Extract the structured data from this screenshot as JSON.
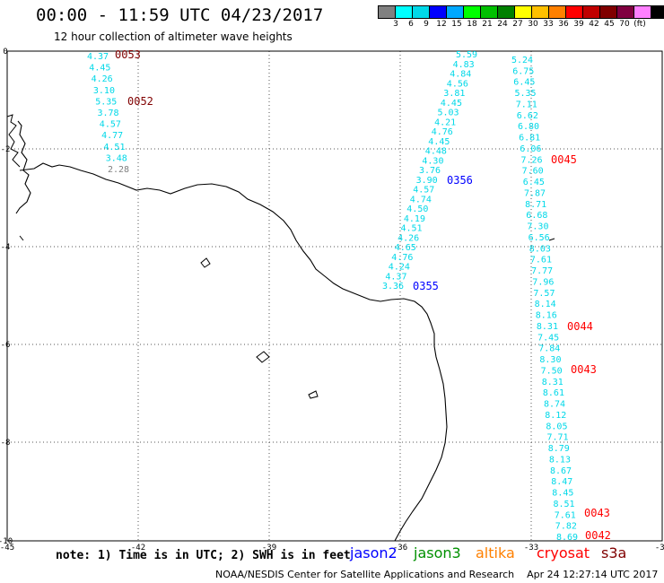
{
  "header": {
    "title": "00:00 - 11:59 UTC 04/23/2017",
    "subtitle": "12 hour collection of altimeter wave heights"
  },
  "colorbar": {
    "unit": "(ft)",
    "labels": [
      "3",
      "6",
      "9",
      "12",
      "15",
      "18",
      "21",
      "24",
      "27",
      "30",
      "33",
      "36",
      "39",
      "42",
      "45",
      "70"
    ],
    "colors": [
      "#808080",
      "#00ffff",
      "#00d8e8",
      "#0000ff",
      "#00a8ff",
      "#00ff00",
      "#00c000",
      "#008000",
      "#ffff00",
      "#ffc000",
      "#ff8000",
      "#ff0000",
      "#c00000",
      "#800000",
      "#800040",
      "#ff80ff",
      "#000000"
    ]
  },
  "axes": {
    "x_ticks": [
      "-45",
      "-42",
      "-39",
      "-36",
      "-33",
      "-30"
    ],
    "y_ticks": [
      "0",
      "-2",
      "-4",
      "-6",
      "-8",
      "-10"
    ]
  },
  "tracks": {
    "track_a": {
      "values": [
        "4.37",
        "4.45",
        "4.26",
        "3.10",
        "5.35",
        "3.78",
        "4.57",
        "4.77",
        "4.51",
        "3.48",
        "2.28"
      ],
      "times": [
        "0053",
        "0052"
      ]
    },
    "track_b": {
      "values": [
        "5.59",
        "4.83",
        "4.84",
        "4.56",
        "3.81",
        "4.45",
        "5.03",
        "4.21",
        "4.76",
        "4.45",
        "4.48",
        "4.30",
        "3.76",
        "3.90",
        "4.57",
        "4.74",
        "4.50",
        "4.19",
        "4.51",
        "4.26",
        "4.65",
        "4.76",
        "4.24",
        "4.37",
        "3.36"
      ],
      "times": [
        "0356",
        "0355"
      ]
    },
    "track_c": {
      "values": [
        "5.24",
        "6.75",
        "6.45",
        "5.35",
        "7.11",
        "6.62",
        "6.80",
        "6.81",
        "6.06",
        "7.26",
        "7.60",
        "6.45",
        "7.87",
        "8.71",
        "6.68",
        "7.30",
        "6.56",
        "8.03",
        "7.61",
        "7.77",
        "7.96",
        "7.57",
        "8.14",
        "8.16",
        "8.31",
        "7.45",
        "7.84",
        "8.30",
        "7.50",
        "8.31",
        "8.61",
        "8.74",
        "8.12",
        "8.05",
        "7.71",
        "8.79",
        "8.13",
        "8.67",
        "8.47",
        "8.45",
        "8.51",
        "7.61",
        "7.82",
        "8.69"
      ],
      "times": [
        "0045",
        "0044",
        "0043",
        "0043",
        "0042"
      ]
    }
  },
  "note": "note: 1) Time is in UTC; 2) SWH is in feet",
  "satellites": [
    {
      "name": "jason2",
      "color": "#0000ff"
    },
    {
      "name": "jason3",
      "color": "#009000"
    },
    {
      "name": "altika",
      "color": "#ff8000"
    },
    {
      "name": "cryosat",
      "color": "#ff0000"
    },
    {
      "name": "s3a",
      "color": "#800000"
    }
  ],
  "footer": {
    "credit": "NOAA/NESDIS Center for Satellite Applications and Research",
    "timestamp": "Apr 24 12:27:14 UTC 2017"
  }
}
